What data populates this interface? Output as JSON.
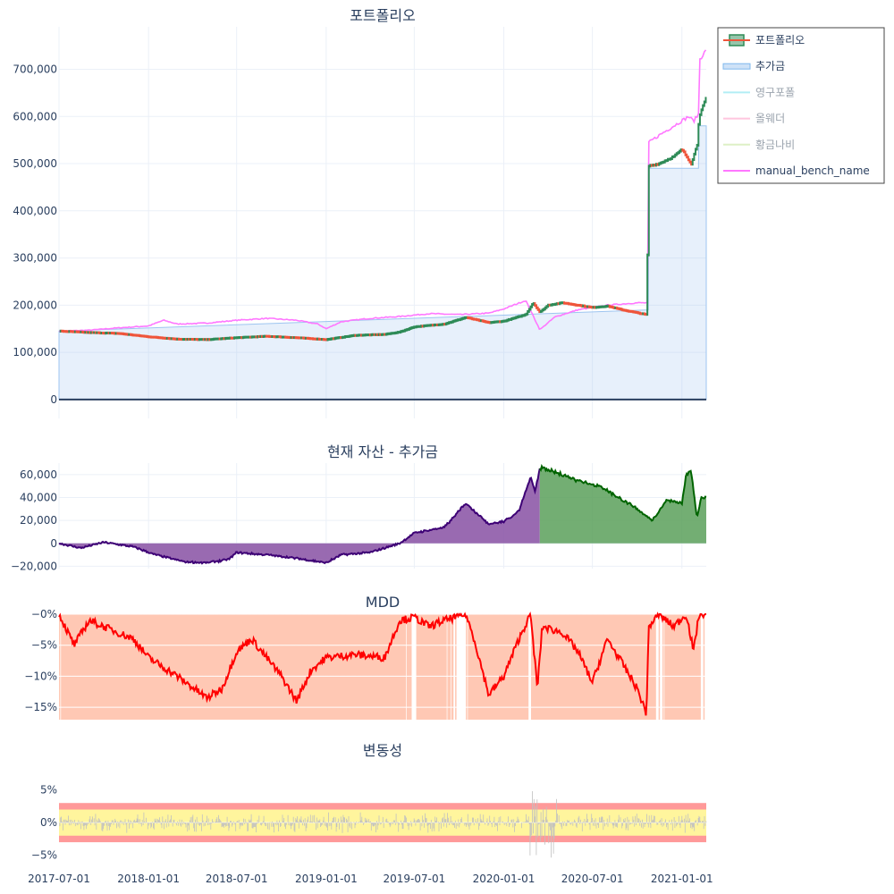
{
  "x_ticks": [
    "2017-07-01",
    "2018-01-01",
    "2018-07-01",
    "2019-01-01",
    "2019-07-01",
    "2020-01-01",
    "2020-07-01",
    "2021-01-01"
  ],
  "legend": [
    {
      "name": "포트폴리오",
      "color": "#2e8b57",
      "active": true,
      "icon": "candlestick-icon"
    },
    {
      "name": "추가금",
      "color": "#7fb8ee",
      "active": true,
      "icon": "area-icon"
    },
    {
      "name": "영구포폴",
      "color": "#7fe3ee",
      "active": false,
      "icon": "line-icon"
    },
    {
      "name": "올웨더",
      "color": "#ff9ec8",
      "active": false,
      "icon": "line-icon"
    },
    {
      "name": "황금나비",
      "color": "#c8e6a0",
      "active": false,
      "icon": "line-icon"
    },
    {
      "name": "manual_bench_name",
      "color": "#ff77ff",
      "active": true,
      "icon": "line-icon"
    }
  ],
  "colors": {
    "increasing": "#2e8b57",
    "decreasing": "#ef553b",
    "bench": "#ff77ff",
    "deposit": "#9ec5f0",
    "profit_fill": "#5aa05a",
    "profit_line": "#006400",
    "loss_fill": "#8e5aa8",
    "loss_line": "#3d0075",
    "mdd_line": "#ff0000",
    "mdd_fill": "#ffc8b4",
    "vol_red": "#ff9999",
    "vol_yellow": "#fff59d"
  },
  "chart_data": [
    {
      "type": "line",
      "title": "포트폴리오",
      "ylim": [
        -40000,
        790000
      ],
      "y_ticks": [
        {
          "v": 0,
          "label": "0"
        },
        {
          "v": 100000,
          "label": "100,000"
        },
        {
          "v": 200000,
          "label": "200,000"
        },
        {
          "v": 300000,
          "label": "300,000"
        },
        {
          "v": 400000,
          "label": "400,000"
        },
        {
          "v": 500000,
          "label": "500,000"
        },
        {
          "v": 600000,
          "label": "600,000"
        },
        {
          "v": 700000,
          "label": "700,000"
        }
      ],
      "series": [
        {
          "name": "포트폴리오",
          "points": [
            [
              "2017-07-01",
              145000
            ],
            [
              "2017-09-01",
              142000
            ],
            [
              "2017-11-01",
              140000
            ],
            [
              "2018-01-01",
              133000
            ],
            [
              "2018-03-01",
              128000
            ],
            [
              "2018-05-01",
              127000
            ],
            [
              "2018-07-01",
              131000
            ],
            [
              "2018-09-01",
              134000
            ],
            [
              "2018-11-01",
              131000
            ],
            [
              "2019-01-01",
              127000
            ],
            [
              "2019-03-01",
              136000
            ],
            [
              "2019-05-01",
              138000
            ],
            [
              "2019-06-01",
              143000
            ],
            [
              "2019-07-01",
              154000
            ],
            [
              "2019-09-01",
              160000
            ],
            [
              "2019-10-15",
              174000
            ],
            [
              "2019-12-01",
              163000
            ],
            [
              "2020-01-01",
              166000
            ],
            [
              "2020-02-15",
              180000
            ],
            [
              "2020-03-01",
              205000
            ],
            [
              "2020-03-15",
              185000
            ],
            [
              "2020-04-01",
              200000
            ],
            [
              "2020-05-01",
              205000
            ],
            [
              "2020-06-01",
              200000
            ],
            [
              "2020-07-01",
              195000
            ],
            [
              "2020-08-01",
              198000
            ],
            [
              "2020-09-01",
              190000
            ],
            [
              "2020-10-10",
              182000
            ],
            [
              "2020-10-20",
              180000
            ],
            [
              "2020-10-25",
              495000
            ],
            [
              "2020-11-15",
              500000
            ],
            [
              "2020-12-15",
              515000
            ],
            [
              "2021-01-01",
              530000
            ],
            [
              "2021-01-20",
              500000
            ],
            [
              "2021-02-01",
              540000
            ],
            [
              "2021-02-05",
              600000
            ],
            [
              "2021-02-20",
              640000
            ]
          ]
        },
        {
          "name": "추가금",
          "points": [
            [
              "2017-07-01",
              145000
            ],
            [
              "2020-10-24",
              190000
            ],
            [
              "2020-10-25",
              490000
            ],
            [
              "2021-02-04",
              490000
            ],
            [
              "2021-02-05",
              580000
            ],
            [
              "2021-02-20",
              580000
            ]
          ]
        },
        {
          "name": "manual_bench_name",
          "points": [
            [
              "2017-07-01",
              145000
            ],
            [
              "2017-09-01",
              147000
            ],
            [
              "2017-11-01",
              152000
            ],
            [
              "2018-01-01",
              156000
            ],
            [
              "2018-02-01",
              168000
            ],
            [
              "2018-03-01",
              160000
            ],
            [
              "2018-05-01",
              162000
            ],
            [
              "2018-07-01",
              168000
            ],
            [
              "2018-09-01",
              172000
            ],
            [
              "2018-11-01",
              168000
            ],
            [
              "2018-12-15",
              160000
            ],
            [
              "2019-01-01",
              150000
            ],
            [
              "2019-02-01",
              165000
            ],
            [
              "2019-04-01",
              172000
            ],
            [
              "2019-06-01",
              176000
            ],
            [
              "2019-08-01",
              182000
            ],
            [
              "2019-10-01",
              180000
            ],
            [
              "2019-12-01",
              183000
            ],
            [
              "2020-01-01",
              192000
            ],
            [
              "2020-02-15",
              210000
            ],
            [
              "2020-03-15",
              148000
            ],
            [
              "2020-04-15",
              175000
            ],
            [
              "2020-06-01",
              190000
            ],
            [
              "2020-08-01",
              200000
            ],
            [
              "2020-10-01",
              205000
            ],
            [
              "2020-10-24",
              205000
            ],
            [
              "2020-10-25",
              545000
            ],
            [
              "2020-11-15",
              560000
            ],
            [
              "2020-12-15",
              580000
            ],
            [
              "2021-01-15",
              600000
            ],
            [
              "2021-01-25",
              590000
            ],
            [
              "2021-02-04",
              605000
            ],
            [
              "2021-02-05",
              720000
            ],
            [
              "2021-02-20",
              740000
            ]
          ]
        }
      ]
    },
    {
      "type": "area",
      "title": "현재 자산 - 추가금",
      "ylim": [
        -22000,
        70000
      ],
      "y_ticks": [
        {
          "v": -20000,
          "label": "−20,000"
        },
        {
          "v": 0,
          "label": "0"
        },
        {
          "v": 20000,
          "label": "20,000"
        },
        {
          "v": 40000,
          "label": "40,000"
        },
        {
          "v": 60000,
          "label": "60,000"
        }
      ],
      "split_date": "2020-03-15",
      "points": [
        [
          "2017-07-01",
          0
        ],
        [
          "2017-08-15",
          -4000
        ],
        [
          "2017-10-01",
          1000
        ],
        [
          "2017-12-01",
          -3000
        ],
        [
          "2018-01-15",
          -10000
        ],
        [
          "2018-03-15",
          -16000
        ],
        [
          "2018-05-01",
          -17000
        ],
        [
          "2018-06-15",
          -14000
        ],
        [
          "2018-07-01",
          -8000
        ],
        [
          "2018-09-01",
          -10000
        ],
        [
          "2018-11-01",
          -13000
        ],
        [
          "2019-01-01",
          -17000
        ],
        [
          "2019-02-01",
          -10000
        ],
        [
          "2019-04-01",
          -8000
        ],
        [
          "2019-06-01",
          0
        ],
        [
          "2019-07-01",
          9000
        ],
        [
          "2019-09-01",
          14000
        ],
        [
          "2019-10-15",
          35000
        ],
        [
          "2019-12-01",
          17000
        ],
        [
          "2020-01-01",
          19000
        ],
        [
          "2020-02-01",
          28000
        ],
        [
          "2020-02-25",
          58000
        ],
        [
          "2020-03-05",
          45000
        ],
        [
          "2020-03-15",
          66000
        ],
        [
          "2020-04-15",
          62000
        ],
        [
          "2020-06-01",
          55000
        ],
        [
          "2020-07-15",
          50000
        ],
        [
          "2020-09-01",
          38000
        ],
        [
          "2020-10-01",
          30000
        ],
        [
          "2020-11-01",
          20000
        ],
        [
          "2020-12-01",
          38000
        ],
        [
          "2021-01-01",
          35000
        ],
        [
          "2021-01-10",
          60000
        ],
        [
          "2021-01-20",
          63000
        ],
        [
          "2021-02-01",
          22000
        ],
        [
          "2021-02-10",
          40000
        ],
        [
          "2021-02-20",
          40000
        ]
      ]
    },
    {
      "type": "area",
      "title": "MDD",
      "ylim": [
        -0.17,
        0.0
      ],
      "y_ticks": [
        {
          "v": 0,
          "label": "−0%"
        },
        {
          "v": -0.05,
          "label": "−5%"
        },
        {
          "v": -0.1,
          "label": "−10%"
        },
        {
          "v": -0.15,
          "label": "−15%"
        }
      ],
      "points": [
        [
          "2017-07-01",
          0
        ],
        [
          "2017-08-01",
          -0.05
        ],
        [
          "2017-09-01",
          -0.01
        ],
        [
          "2017-10-01",
          -0.02
        ],
        [
          "2017-12-01",
          -0.04
        ],
        [
          "2018-01-01",
          -0.07
        ],
        [
          "2018-03-01",
          -0.1
        ],
        [
          "2018-05-01",
          -0.135
        ],
        [
          "2018-06-01",
          -0.12
        ],
        [
          "2018-07-01",
          -0.06
        ],
        [
          "2018-08-01",
          -0.04
        ],
        [
          "2018-10-01",
          -0.1
        ],
        [
          "2018-11-01",
          -0.14
        ],
        [
          "2018-12-01",
          -0.09
        ],
        [
          "2019-01-01",
          -0.07
        ],
        [
          "2019-03-01",
          -0.065
        ],
        [
          "2019-05-01",
          -0.07
        ],
        [
          "2019-06-01",
          -0.01
        ],
        [
          "2019-07-01",
          -0.005
        ],
        [
          "2019-08-01",
          -0.02
        ],
        [
          "2019-09-01",
          -0.01
        ],
        [
          "2019-10-15",
          0
        ],
        [
          "2019-11-01",
          -0.04
        ],
        [
          "2019-12-01",
          -0.13
        ],
        [
          "2020-01-01",
          -0.1
        ],
        [
          "2020-02-01",
          -0.04
        ],
        [
          "2020-02-25",
          0
        ],
        [
          "2020-03-10",
          -0.12
        ],
        [
          "2020-03-20",
          -0.02
        ],
        [
          "2020-05-01",
          -0.03
        ],
        [
          "2020-06-01",
          -0.06
        ],
        [
          "2020-07-01",
          -0.11
        ],
        [
          "2020-08-01",
          -0.04
        ],
        [
          "2020-09-01",
          -0.08
        ],
        [
          "2020-10-01",
          -0.12
        ],
        [
          "2020-10-20",
          -0.16
        ],
        [
          "2020-10-25",
          -0.02
        ],
        [
          "2020-11-15",
          0
        ],
        [
          "2020-12-15",
          -0.02
        ],
        [
          "2021-01-10",
          0
        ],
        [
          "2021-01-25",
          -0.06
        ],
        [
          "2021-02-05",
          0
        ],
        [
          "2021-02-20",
          0
        ]
      ]
    },
    {
      "type": "bar",
      "title": "변동성",
      "ylim": [
        -0.075,
        0.085
      ],
      "y_ticks": [
        {
          "v": -0.05,
          "label": "−5%"
        },
        {
          "v": 0,
          "label": "0%"
        },
        {
          "v": 0.05,
          "label": "5%"
        }
      ],
      "bands": [
        {
          "from": -0.03,
          "to": 0.03,
          "level": "red"
        },
        {
          "from": -0.02,
          "to": 0.02,
          "level": "yellow"
        }
      ],
      "spike_window": [
        "2020-02-20",
        "2020-04-20"
      ]
    }
  ]
}
